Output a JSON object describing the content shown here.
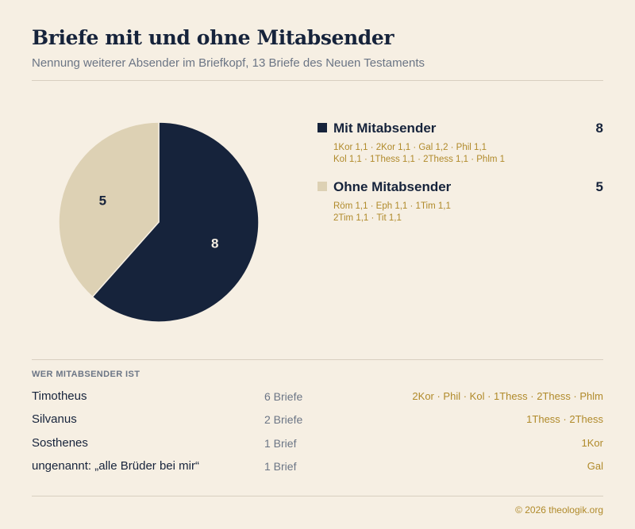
{
  "header": {
    "title": "Briefe mit und ohne Mitabsender",
    "subtitle": "Nennung weiterer Absender im Briefkopf, 13 Briefe des Neuen Testaments"
  },
  "chart_data": {
    "type": "pie",
    "title": "Briefe mit und ohne Mitabsender",
    "categories": [
      "Mit Mitabsender",
      "Ohne Mitabsender"
    ],
    "values": [
      8,
      5
    ],
    "colors": [
      "#16233b",
      "#ddd1b4"
    ],
    "data_labels": [
      "8",
      "5"
    ],
    "legend_position": "right"
  },
  "legend": [
    {
      "name": "Mit Mitabsender",
      "count": "8",
      "color": "#16233b",
      "refs_line1": "1Kor 1,1 · 2Kor 1,1 · Gal 1,2 · Phil 1,1",
      "refs_line2": "Kol 1,1 · 1Thess 1,1 · 2Thess 1,1 · Phlm 1"
    },
    {
      "name": "Ohne Mitabsender",
      "count": "5",
      "color": "#ddd1b4",
      "refs_line1": "Röm 1,1 · Eph 1,1 · 1Tim 1,1",
      "refs_line2": "2Tim 1,1 · Tit 1,1"
    }
  ],
  "coauthors": {
    "heading": "WER MITABSENDER IST",
    "rows": [
      {
        "name": "Timotheus",
        "count": "6 Briefe",
        "books": "2Kor · Phil · Kol · 1Thess · 2Thess · Phlm"
      },
      {
        "name": "Silvanus",
        "count": "2 Briefe",
        "books": "1Thess · 2Thess"
      },
      {
        "name": "Sosthenes",
        "count": "1 Brief",
        "books": "1Kor"
      },
      {
        "name": "ungenannt: „alle Brüder bei mir“",
        "count": "1 Brief",
        "books": "Gal"
      }
    ]
  },
  "footer": {
    "copyright": "© 2026 theologik.org"
  }
}
